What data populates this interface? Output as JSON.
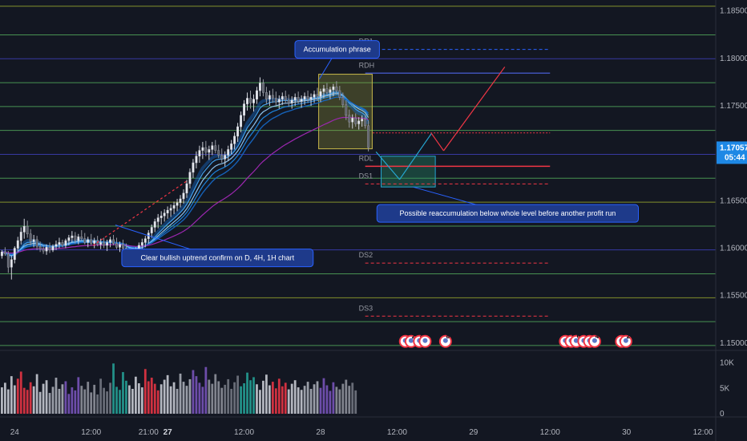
{
  "chart_data": {
    "type": "candlestick",
    "price_axis": {
      "ylim": [
        1.1494,
        1.18615
      ],
      "tick_labels": [
        "1.18500",
        "1.18000",
        "1.17500",
        "1.17000",
        "1.16500",
        "1.16000",
        "1.15500",
        "1.15000"
      ],
      "tick_values": [
        1.185,
        1.18,
        1.175,
        1.17,
        1.165,
        1.16,
        1.155,
        1.15
      ]
    },
    "volume_axis": {
      "tick_labels": [
        "10K",
        "5K",
        "0"
      ],
      "tick_values": [
        10000,
        5000,
        0
      ],
      "ylim": [
        0,
        12000
      ]
    },
    "time_axis": {
      "tick_labels": [
        "24",
        "12:00",
        "21:00",
        "27",
        "12:00",
        "28",
        "12:00",
        "29",
        "12:00",
        "30",
        "12:00"
      ],
      "bold": [
        false,
        false,
        false,
        true,
        false,
        false,
        false,
        false,
        false,
        false,
        false
      ],
      "tick_hours": [
        0,
        12,
        21,
        24,
        36,
        48,
        60,
        72,
        84,
        96,
        108
      ],
      "xlim": [
        -2.3,
        110
      ]
    },
    "last_price": {
      "value": "1.17057",
      "countdown": "05:44",
      "color": "#1e88e5"
    },
    "horizontal_levels": [
      {
        "price": 1.1855,
        "color": "#8f9e2e"
      },
      {
        "price": 1.18248,
        "color": "#4ea057"
      },
      {
        "price": 1.17996,
        "color": "#3b3db0"
      },
      {
        "price": 1.17744,
        "color": "#4ea057"
      },
      {
        "price": 1.17492,
        "color": "#4ea057"
      },
      {
        "price": 1.17241,
        "color": "#4ea057"
      },
      {
        "price": 1.16989,
        "color": "#3b3db0"
      },
      {
        "price": 1.16737,
        "color": "#4ea057"
      },
      {
        "price": 1.16485,
        "color": "#8f9e2e"
      },
      {
        "price": 1.16233,
        "color": "#4ea057"
      },
      {
        "price": 1.15982,
        "color": "#3b3db0"
      },
      {
        "price": 1.1573,
        "color": "#4ea057"
      },
      {
        "price": 1.15478,
        "color": "#8f9e2e"
      },
      {
        "price": 1.15226,
        "color": "#4ea057"
      },
      {
        "price": 1.14975,
        "color": "#4ea057"
      }
    ],
    "pivot_levels": [
      {
        "label": "DR1",
        "price": 1.18094,
        "color": "#2962ff",
        "dashed": true
      },
      {
        "label": "RDH",
        "price": 1.17844,
        "color": "#3f51b5",
        "dashed": false
      },
      {
        "label": "RDL",
        "price": 1.16863,
        "color": "#f23645",
        "dashed": false
      },
      {
        "label": "DS1",
        "price": 1.16677,
        "color": "#f23645",
        "dashed": true
      },
      {
        "label": "DS2",
        "price": 1.15843,
        "color": "#f23645",
        "dashed": true
      },
      {
        "label": "DS3",
        "price": 1.15284,
        "color": "#f23645",
        "dashed": true
      }
    ],
    "pivot_range_hours": [
      55,
      84
    ],
    "boxes": [
      {
        "name": "accumulation-box",
        "t0": 47.7,
        "t1": 56.1,
        "p0": 1.17047,
        "p1": 1.17833,
        "fill": "rgba(160,160,60,0.30)",
        "stroke": "#c8b84a"
      },
      {
        "name": "reaccumulation-box",
        "t0": 57.5,
        "t1": 66.0,
        "p0": 1.16645,
        "p1": 1.16969,
        "fill": "rgba(40,150,110,0.35)",
        "stroke": "#26a6d1"
      }
    ],
    "projection_path": {
      "points": [
        [
          56.7,
          1.17015
        ],
        [
          60.4,
          1.16724
        ],
        [
          65.4,
          1.17209
        ],
        [
          67.3,
          1.17027
        ],
        [
          76.9,
          1.1791
        ]
      ],
      "colors": [
        "#26a6d1",
        "#26a6d1",
        "#f23645",
        "#f23645"
      ]
    },
    "trend_line": {
      "points": [
        [
          12.3,
          1.16029
        ],
        [
          27.1,
          1.16712
        ]
      ],
      "color": "#f23645"
    },
    "dotted_red_line": {
      "t0": 56.2,
      "t1": 84,
      "price": 1.17215,
      "color": "#f23645"
    },
    "annotations": [
      {
        "text": "Accumulation phrase",
        "anchor": [
          47.8,
          1.17782
        ],
        "side": "top"
      },
      {
        "text": "Possible reaccumulation below whole level before another profit run",
        "anchor": [
          62.5,
          1.16645
        ],
        "side": "bottom"
      },
      {
        "text": "Clear bullish uptrend confirm on D, 4H, 1H chart",
        "anchor": [
          15.8,
          1.16244
        ],
        "side": "bottom"
      }
    ],
    "event_flags": [
      {
        "hour": 61.3,
        "label": ""
      },
      {
        "hour": 62.2,
        "label": "2"
      },
      {
        "hour": 63.5,
        "label": "4"
      },
      {
        "hour": 64.4,
        "label": ""
      },
      {
        "hour": 67.6,
        "label": "8"
      },
      {
        "hour": 86.4,
        "label": ""
      },
      {
        "hour": 87.3,
        "label": "5"
      },
      {
        "hour": 88.1,
        "label": "6"
      },
      {
        "hour": 89.3,
        "label": "3"
      },
      {
        "hour": 90.2,
        "label": "2"
      },
      {
        "hour": 91.0,
        "label": "4"
      },
      {
        "hour": 95.2,
        "label": ""
      },
      {
        "hour": 95.9,
        "label": "2"
      }
    ],
    "candles": [
      [
        -2.0,
        1.1592,
        1.1598,
        1.1589,
        1.1596
      ],
      [
        -1.5,
        1.1596,
        1.1601,
        1.1592,
        1.1594
      ],
      [
        -1.0,
        1.1594,
        1.1597,
        1.1574,
        1.158
      ],
      [
        -0.5,
        1.158,
        1.1592,
        1.1567,
        1.1588
      ],
      [
        0.0,
        1.1588,
        1.1602,
        1.1584,
        1.16
      ],
      [
        0.5,
        1.16,
        1.1612,
        1.1596,
        1.1608
      ],
      [
        1.0,
        1.1608,
        1.1622,
        1.1604,
        1.1617
      ],
      [
        1.5,
        1.1617,
        1.1631,
        1.161,
        1.1623
      ],
      [
        2.0,
        1.1623,
        1.1629,
        1.1611,
        1.1615
      ],
      [
        2.5,
        1.1615,
        1.162,
        1.1603,
        1.1607
      ],
      [
        3.0,
        1.1607,
        1.1614,
        1.1601,
        1.1609
      ],
      [
        3.5,
        1.1609,
        1.1613,
        1.1598,
        1.1602
      ],
      [
        4.0,
        1.1602,
        1.1607,
        1.1596,
        1.1599
      ],
      [
        4.5,
        1.1599,
        1.1603,
        1.1594,
        1.1597
      ],
      [
        5.0,
        1.1597,
        1.1604,
        1.1593,
        1.1601
      ],
      [
        5.5,
        1.1601,
        1.1606,
        1.1595,
        1.1598
      ],
      [
        6.0,
        1.1598,
        1.1604,
        1.1596,
        1.1602
      ],
      [
        6.5,
        1.1602,
        1.1608,
        1.1598,
        1.1604
      ],
      [
        7.0,
        1.1604,
        1.1611,
        1.16,
        1.1606
      ],
      [
        7.5,
        1.1606,
        1.1609,
        1.1601,
        1.1603
      ],
      [
        8.0,
        1.1603,
        1.161,
        1.16,
        1.1608
      ],
      [
        8.5,
        1.1608,
        1.1614,
        1.1603,
        1.1611
      ],
      [
        9.0,
        1.1611,
        1.1618,
        1.1606,
        1.1613
      ],
      [
        9.5,
        1.1613,
        1.1617,
        1.1605,
        1.1608
      ],
      [
        10.0,
        1.1608,
        1.1615,
        1.1604,
        1.1612
      ],
      [
        10.5,
        1.1612,
        1.1619,
        1.1608,
        1.161
      ],
      [
        11.0,
        1.161,
        1.1616,
        1.1604,
        1.1606
      ],
      [
        11.5,
        1.1606,
        1.1612,
        1.1601,
        1.1609
      ],
      [
        12.0,
        1.1609,
        1.1615,
        1.1603,
        1.1605
      ],
      [
        12.5,
        1.1605,
        1.1611,
        1.16,
        1.1608
      ],
      [
        13.0,
        1.1608,
        1.1613,
        1.1602,
        1.1604
      ],
      [
        13.5,
        1.1604,
        1.161,
        1.1599,
        1.1606
      ],
      [
        14.0,
        1.1606,
        1.1611,
        1.16,
        1.1603
      ],
      [
        14.5,
        1.1603,
        1.1609,
        1.1597,
        1.1606
      ],
      [
        15.0,
        1.1606,
        1.1612,
        1.1601,
        1.1609
      ],
      [
        15.5,
        1.1609,
        1.1614,
        1.1603,
        1.1605
      ],
      [
        16.0,
        1.1605,
        1.1611,
        1.1599,
        1.1601
      ],
      [
        16.5,
        1.1601,
        1.1607,
        1.1596,
        1.1604
      ],
      [
        17.0,
        1.1604,
        1.1609,
        1.1598,
        1.16
      ],
      [
        17.5,
        1.16,
        1.1605,
        1.159,
        1.1593
      ],
      [
        18.0,
        1.1593,
        1.1599,
        1.1585,
        1.159
      ],
      [
        18.5,
        1.159,
        1.1596,
        1.1582,
        1.1594
      ],
      [
        19.0,
        1.1594,
        1.1601,
        1.1589,
        1.1598
      ],
      [
        19.5,
        1.1598,
        1.1606,
        1.1594,
        1.1603
      ],
      [
        20.0,
        1.1603,
        1.161,
        1.1598,
        1.1606
      ],
      [
        20.5,
        1.1606,
        1.1613,
        1.1601,
        1.161
      ],
      [
        21.0,
        1.161,
        1.1619,
        1.1605,
        1.1616
      ],
      [
        21.5,
        1.1616,
        1.1625,
        1.1611,
        1.1622
      ],
      [
        22.0,
        1.1622,
        1.1631,
        1.1617,
        1.1628
      ],
      [
        22.5,
        1.1628,
        1.1636,
        1.1621,
        1.1632
      ],
      [
        23.0,
        1.1632,
        1.1639,
        1.1625,
        1.1634
      ],
      [
        23.5,
        1.1634,
        1.1641,
        1.1628,
        1.1637
      ],
      [
        24.0,
        1.1637,
        1.1644,
        1.1631,
        1.164
      ],
      [
        24.5,
        1.164,
        1.1646,
        1.1633,
        1.1642
      ],
      [
        25.0,
        1.1642,
        1.1649,
        1.1636,
        1.1645
      ],
      [
        25.5,
        1.1645,
        1.1652,
        1.1639,
        1.1648
      ],
      [
        26.0,
        1.1648,
        1.1656,
        1.1643,
        1.1652
      ],
      [
        26.5,
        1.1652,
        1.1662,
        1.1647,
        1.1658
      ],
      [
        27.0,
        1.1658,
        1.1672,
        1.1653,
        1.1668
      ],
      [
        27.5,
        1.1668,
        1.1684,
        1.1663,
        1.168
      ],
      [
        28.0,
        1.168,
        1.1694,
        1.1674,
        1.169
      ],
      [
        28.5,
        1.169,
        1.1702,
        1.1684,
        1.1697
      ],
      [
        29.0,
        1.1697,
        1.1708,
        1.169,
        1.1703
      ],
      [
        29.5,
        1.1703,
        1.1712,
        1.1694,
        1.1706
      ],
      [
        30.0,
        1.1706,
        1.1713,
        1.1697,
        1.1701
      ],
      [
        30.5,
        1.1701,
        1.1708,
        1.1693,
        1.1704
      ],
      [
        31.0,
        1.1704,
        1.1712,
        1.1698,
        1.1708
      ],
      [
        31.5,
        1.1708,
        1.1714,
        1.17,
        1.1703
      ],
      [
        32.0,
        1.1703,
        1.1709,
        1.1695,
        1.1698
      ],
      [
        32.5,
        1.1698,
        1.1705,
        1.169,
        1.1694
      ],
      [
        33.0,
        1.1694,
        1.1702,
        1.1686,
        1.1698
      ],
      [
        33.5,
        1.1698,
        1.1708,
        1.1692,
        1.1704
      ],
      [
        34.0,
        1.1704,
        1.1714,
        1.1699,
        1.171
      ],
      [
        34.5,
        1.171,
        1.1722,
        1.1704,
        1.1718
      ],
      [
        35.0,
        1.1718,
        1.1732,
        1.1712,
        1.1728
      ],
      [
        35.5,
        1.1728,
        1.1744,
        1.1722,
        1.174
      ],
      [
        36.0,
        1.174,
        1.1756,
        1.1734,
        1.1752
      ],
      [
        36.5,
        1.1752,
        1.1764,
        1.1745,
        1.1758
      ],
      [
        37.0,
        1.1758,
        1.1766,
        1.1747,
        1.1753
      ],
      [
        37.5,
        1.1753,
        1.1762,
        1.1744,
        1.1757
      ],
      [
        38.0,
        1.1757,
        1.177,
        1.1752,
        1.1766
      ],
      [
        38.5,
        1.1766,
        1.178,
        1.176,
        1.1774
      ],
      [
        39.0,
        1.1774,
        1.1778,
        1.176,
        1.1764
      ],
      [
        39.5,
        1.1764,
        1.177,
        1.1752,
        1.1757
      ],
      [
        40.0,
        1.1757,
        1.1766,
        1.175,
        1.1761
      ],
      [
        40.5,
        1.1761,
        1.1768,
        1.1753,
        1.1758
      ],
      [
        41.0,
        1.1758,
        1.1765,
        1.175,
        1.1754
      ],
      [
        41.5,
        1.1754,
        1.1761,
        1.1747,
        1.1757
      ],
      [
        42.0,
        1.1757,
        1.1764,
        1.1751,
        1.176
      ],
      [
        42.5,
        1.176,
        1.1766,
        1.1752,
        1.1756
      ],
      [
        43.0,
        1.1756,
        1.1762,
        1.1749,
        1.1753
      ],
      [
        43.5,
        1.1753,
        1.176,
        1.1747,
        1.1756
      ],
      [
        44.0,
        1.1756,
        1.1763,
        1.175,
        1.1759
      ],
      [
        44.5,
        1.1759,
        1.1765,
        1.1752,
        1.1755
      ],
      [
        45.0,
        1.1755,
        1.1761,
        1.1748,
        1.1757
      ],
      [
        45.5,
        1.1757,
        1.1764,
        1.1751,
        1.176
      ],
      [
        46.0,
        1.176,
        1.1766,
        1.1753,
        1.1757
      ],
      [
        46.5,
        1.1757,
        1.1763,
        1.175,
        1.1759
      ],
      [
        47.0,
        1.1759,
        1.1766,
        1.1753,
        1.1762
      ],
      [
        47.5,
        1.1762,
        1.1769,
        1.1755,
        1.176
      ],
      [
        48.0,
        1.176,
        1.1768,
        1.1754,
        1.1765
      ],
      [
        48.5,
        1.1765,
        1.1772,
        1.1758,
        1.1768
      ],
      [
        49.0,
        1.1768,
        1.1774,
        1.1761,
        1.1764
      ],
      [
        49.5,
        1.1764,
        1.177,
        1.1757,
        1.1767
      ],
      [
        50.0,
        1.1767,
        1.1773,
        1.176,
        1.177
      ],
      [
        50.5,
        1.177,
        1.1776,
        1.1762,
        1.1766
      ],
      [
        51.0,
        1.1766,
        1.1771,
        1.1756,
        1.1759
      ],
      [
        51.5,
        1.1759,
        1.1764,
        1.1748,
        1.1751
      ],
      [
        52.0,
        1.1751,
        1.1756,
        1.1735,
        1.174
      ],
      [
        52.5,
        1.174,
        1.1746,
        1.1727,
        1.1733
      ],
      [
        53.0,
        1.1733,
        1.1741,
        1.1726,
        1.1737
      ],
      [
        53.5,
        1.1737,
        1.1742,
        1.1728,
        1.1731
      ],
      [
        54.0,
        1.1731,
        1.1738,
        1.1725,
        1.1734
      ],
      [
        54.5,
        1.1734,
        1.174,
        1.1728,
        1.1736
      ],
      [
        55.0,
        1.1736,
        1.174,
        1.1726,
        1.1729
      ],
      [
        55.5,
        1.1729,
        1.1734,
        1.1702,
        1.1706
      ]
    ],
    "volume": [
      5200,
      6100,
      4800,
      7400,
      5600,
      6900,
      8300,
      5100,
      4700,
      6200,
      5400,
      7800,
      4300,
      5900,
      6600,
      4100,
      5300,
      7100,
      4900,
      5800,
      6400,
      3900,
      5200,
      4600,
      7200,
      5500,
      4800,
      6300,
      4200,
      5700,
      3800,
      6900,
      5100,
      4400,
      6100,
      9900,
      5300,
      4700,
      8200,
      6500,
      5600,
      4900,
      7300,
      6000,
      5200,
      8800,
      6400,
      7100,
      5900,
      4600,
      5800,
      6700,
      7600,
      5400,
      6200,
      4900,
      7900,
      6300,
      5500,
      6800,
      8600,
      7400,
      6100,
      5300,
      9200,
      6700,
      5900,
      7800,
      6400,
      5100,
      5700,
      6800,
      4900,
      6200,
      7500,
      5400,
      6000,
      8100,
      6600,
      7200,
      5800,
      4700,
      6500,
      7700,
      5600,
      6300,
      5000,
      6900,
      5400,
      6100,
      4800,
      5900,
      6600,
      5200,
      4700,
      5500,
      6300,
      4900,
      5800,
      6400,
      5100,
      7000,
      5600,
      4500,
      6200,
      5300,
      4800,
      5900,
      6700,
      5500,
      6100,
      4600
    ]
  }
}
